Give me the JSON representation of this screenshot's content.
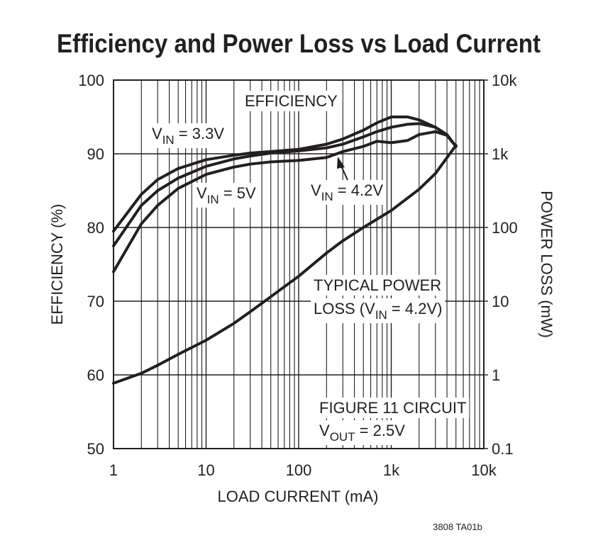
{
  "chart_data": {
    "type": "line",
    "title": "Efficiency and Power Loss vs Load Current",
    "xlabel": "LOAD CURRENT (mA)",
    "ylabel": "EFFICIENCY (%)",
    "y2label": "POWER LOSS (mW)",
    "footer": "3808 TA01b",
    "xscale": "log",
    "y2scale": "log",
    "grid": true,
    "minor_grid": true,
    "xlim": [
      1,
      10000
    ],
    "xticks": [
      1,
      10,
      100,
      {
        "value": 1000,
        "label": "1k"
      },
      {
        "value": 10000,
        "label": "10k"
      }
    ],
    "ylim": [
      50,
      100
    ],
    "yticks": [
      50,
      60,
      70,
      80,
      90,
      100
    ],
    "y2lim": [
      0.1,
      10000
    ],
    "y2ticks": [
      0.1,
      1,
      10,
      100,
      {
        "value": 1000,
        "label": "1k"
      },
      {
        "value": 10000,
        "label": "10k"
      }
    ],
    "series": [
      {
        "color": "#231f20",
        "x": [
          1,
          2,
          3,
          5,
          10,
          20,
          30,
          50,
          100,
          200,
          300,
          500,
          700,
          1000,
          1500,
          2000,
          3000,
          4000,
          5000
        ],
        "values": [
          79.5,
          84.5,
          86.5,
          88,
          89.2,
          89.8,
          90.1,
          90.3,
          90.6,
          91.3,
          92,
          93.2,
          94.2,
          95,
          95,
          94.6,
          93.6,
          92.5,
          91
        ]
      },
      {
        "color": "#231f20",
        "x": [
          1,
          2,
          3,
          5,
          10,
          20,
          30,
          50,
          100,
          200,
          300,
          500,
          700,
          1000,
          1500,
          2000,
          3000,
          4000,
          5000
        ],
        "values": [
          77.5,
          83,
          85,
          86.7,
          88.3,
          89.3,
          89.7,
          90.1,
          90.4,
          90.8,
          91.3,
          92.3,
          93,
          93.6,
          94,
          94.1,
          93.6,
          92.6,
          91
        ]
      },
      {
        "color": "#231f20",
        "x": [
          1,
          2,
          3,
          5,
          10,
          20,
          30,
          50,
          100,
          200,
          300,
          500,
          700,
          1000,
          1500,
          2000,
          3000,
          4000,
          5000
        ],
        "values": [
          74,
          80.5,
          83,
          85.3,
          87.2,
          88.2,
          88.6,
          88.9,
          89.1,
          89.5,
          90.3,
          91,
          91.7,
          91.5,
          91.8,
          92.6,
          93,
          92.5,
          91
        ]
      },
      {
        "color": "#231f20",
        "axis": "y2",
        "x": [
          1,
          2,
          3,
          5,
          10,
          20,
          30,
          50,
          100,
          200,
          300,
          500,
          1000,
          2000,
          3000,
          5000
        ],
        "values": [
          0.77,
          1.05,
          1.35,
          1.9,
          2.95,
          5,
          7.2,
          11.5,
          21.8,
          45,
          66,
          100,
          170,
          330,
          540,
          1300
        ]
      }
    ],
    "annotations": [
      {
        "parts": [
          "EFFICIENCY"
        ]
      },
      {
        "parts": [
          "V",
          "IN",
          " = 3.3V"
        ]
      },
      {
        "parts": [
          "V",
          "IN",
          " = 5V"
        ]
      },
      {
        "parts": [
          "V",
          "IN",
          " = 4.2V"
        ]
      },
      {
        "parts": [
          "TYPICAL POWER"
        ]
      },
      {
        "parts": [
          "LOSS (V",
          "IN",
          " = 4.2V)"
        ]
      },
      {
        "parts": [
          "FIGURE 11 CIRCUIT"
        ]
      },
      {
        "parts": [
          "V",
          "OUT",
          " = 2.5V"
        ]
      }
    ]
  }
}
